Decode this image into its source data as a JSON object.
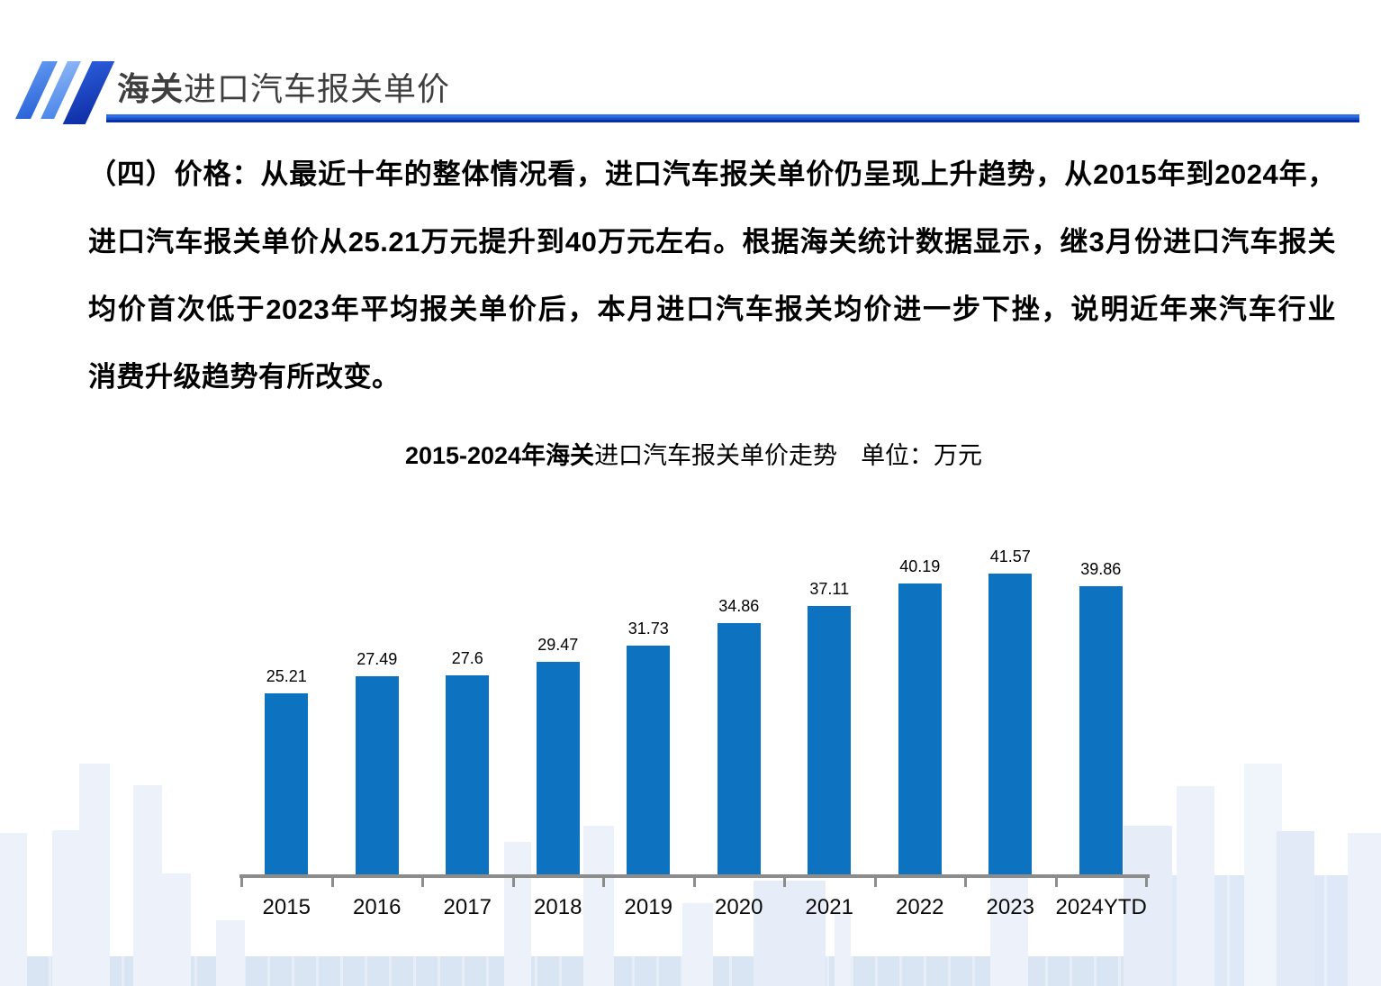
{
  "header": {
    "title_bold": "海关",
    "title_rest": "进口汽车报关单价",
    "logo_icon": "triple-slash-logo"
  },
  "paragraph": {
    "lines": [
      "（四）价格：从最近十年的整体情况看，进口汽车报关单价仍呈现上升趋势，从2015年到2024年，",
      "进口汽车报关单价从25.21万元提升到40万元左右。根据海关统计数据显示，继3月份进口汽车报关",
      "均价首次低于2023年平均报关单价后，本月进口汽车报关均价进一步下挫，说明近年来汽车行业",
      "消费升级趋势有所改变。"
    ]
  },
  "chart": {
    "title_bold": "2015-2024年海关",
    "title_regular": "进口汽车报关单价走势",
    "unit_label": "单位：万元"
  },
  "chart_data": {
    "type": "bar",
    "title": "2015-2024年海关进口汽车报关单价走势",
    "unit_label": "单位：万元",
    "categories": [
      "2015",
      "2016",
      "2017",
      "2018",
      "2019",
      "2020",
      "2021",
      "2022",
      "2023",
      "2024YTD"
    ],
    "values": [
      25.21,
      27.49,
      27.6,
      29.47,
      31.73,
      34.86,
      37.11,
      40.19,
      41.57,
      39.86
    ],
    "value_labels": [
      "25.21",
      "27.49",
      "27.6",
      "29.47",
      "31.73",
      "34.86",
      "37.11",
      "40.19",
      "41.57",
      "39.86"
    ],
    "ylim": [
      0,
      45
    ],
    "grid": false,
    "legend": "none",
    "data_labels": true,
    "bar_color": "#0D72BF",
    "axis_color": "#8C8C8C"
  },
  "colors": {
    "bar_blue": "#0D72BF",
    "underline_blue": "#1A52CC",
    "underline_navy": "#0A2FA0",
    "logo_blue_light": "#8AB4F6",
    "logo_blue_mid": "#2B63D8",
    "logo_blue_dark": "#0E2EA6",
    "title_gray": "#3F3F3F",
    "axis_gray": "#8C8C8C",
    "skyline_light": "#ECF1FA",
    "skyline_mid": "#E2EAF7",
    "skyline_band": "#DAE5F3"
  }
}
